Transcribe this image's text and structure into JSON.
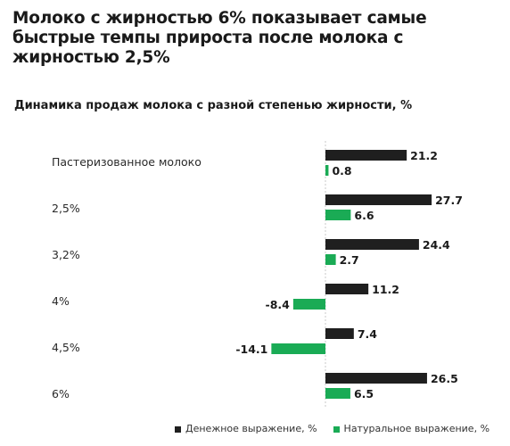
{
  "headline": "Молоко с жирностью 6% показывает самые быстрые темпы прироста после молока с жирностью 2,5%",
  "chart_data": {
    "type": "bar",
    "orientation": "horizontal",
    "title": "Динамика продаж молока с разной степенью жирности, %",
    "categories": [
      "Пастеризованное молоко",
      "2,5%",
      "3,2%",
      "4%",
      "4,5%",
      "6%"
    ],
    "series": [
      {
        "name": "Денежное выражение, %",
        "color": "#1f1f1f",
        "values": [
          21.2,
          27.7,
          24.4,
          11.2,
          7.4,
          26.5
        ]
      },
      {
        "name": "Натуральное выражение, %",
        "color": "#1aab55",
        "values": [
          0.8,
          6.6,
          2.7,
          -8.4,
          -14.1,
          6.5
        ]
      }
    ],
    "grid": false,
    "legend_position": "bottom-right"
  }
}
